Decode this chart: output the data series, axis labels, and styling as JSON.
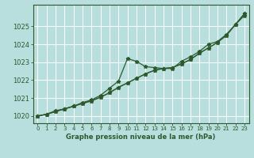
{
  "bg_color": "#b8dede",
  "grid_color": "#d4eeee",
  "line_color": "#2d5a2d",
  "xlabel": "Graphe pression niveau de la mer (hPa)",
  "xlim": [
    -0.5,
    23.5
  ],
  "ylim": [
    1019.6,
    1026.2
  ],
  "yticks": [
    1020,
    1021,
    1022,
    1023,
    1024,
    1025
  ],
  "xticks": [
    0,
    1,
    2,
    3,
    4,
    5,
    6,
    7,
    8,
    9,
    10,
    11,
    12,
    13,
    14,
    15,
    16,
    17,
    18,
    19,
    20,
    21,
    22,
    23
  ],
  "hours": [
    0,
    1,
    2,
    3,
    4,
    5,
    6,
    7,
    8,
    9,
    10,
    11,
    12,
    13,
    14,
    15,
    16,
    17,
    18,
    19,
    20,
    21,
    22,
    23
  ],
  "line_smooth1": [
    1020.0,
    1020.1,
    1020.25,
    1020.4,
    1020.55,
    1020.7,
    1020.85,
    1021.05,
    1021.3,
    1021.6,
    1021.85,
    1022.1,
    1022.35,
    1022.55,
    1022.65,
    1022.7,
    1022.9,
    1023.15,
    1023.5,
    1023.8,
    1024.1,
    1024.5,
    1025.1,
    1025.6
  ],
  "line_smooth2": [
    1020.0,
    1020.1,
    1020.25,
    1020.4,
    1020.55,
    1020.7,
    1020.85,
    1021.05,
    1021.3,
    1021.6,
    1021.85,
    1022.1,
    1022.35,
    1022.55,
    1022.65,
    1022.7,
    1022.9,
    1023.15,
    1023.5,
    1023.8,
    1024.1,
    1024.5,
    1025.1,
    1025.7
  ],
  "line_bumpy": [
    1020.0,
    1020.1,
    1020.3,
    1020.4,
    1020.55,
    1020.75,
    1020.9,
    1021.15,
    1021.55,
    1021.95,
    1023.2,
    1023.05,
    1022.75,
    1022.7,
    1022.65,
    1022.65,
    1023.05,
    1023.3,
    1023.6,
    1024.0,
    1024.15,
    1024.55,
    1025.1,
    1025.7
  ]
}
